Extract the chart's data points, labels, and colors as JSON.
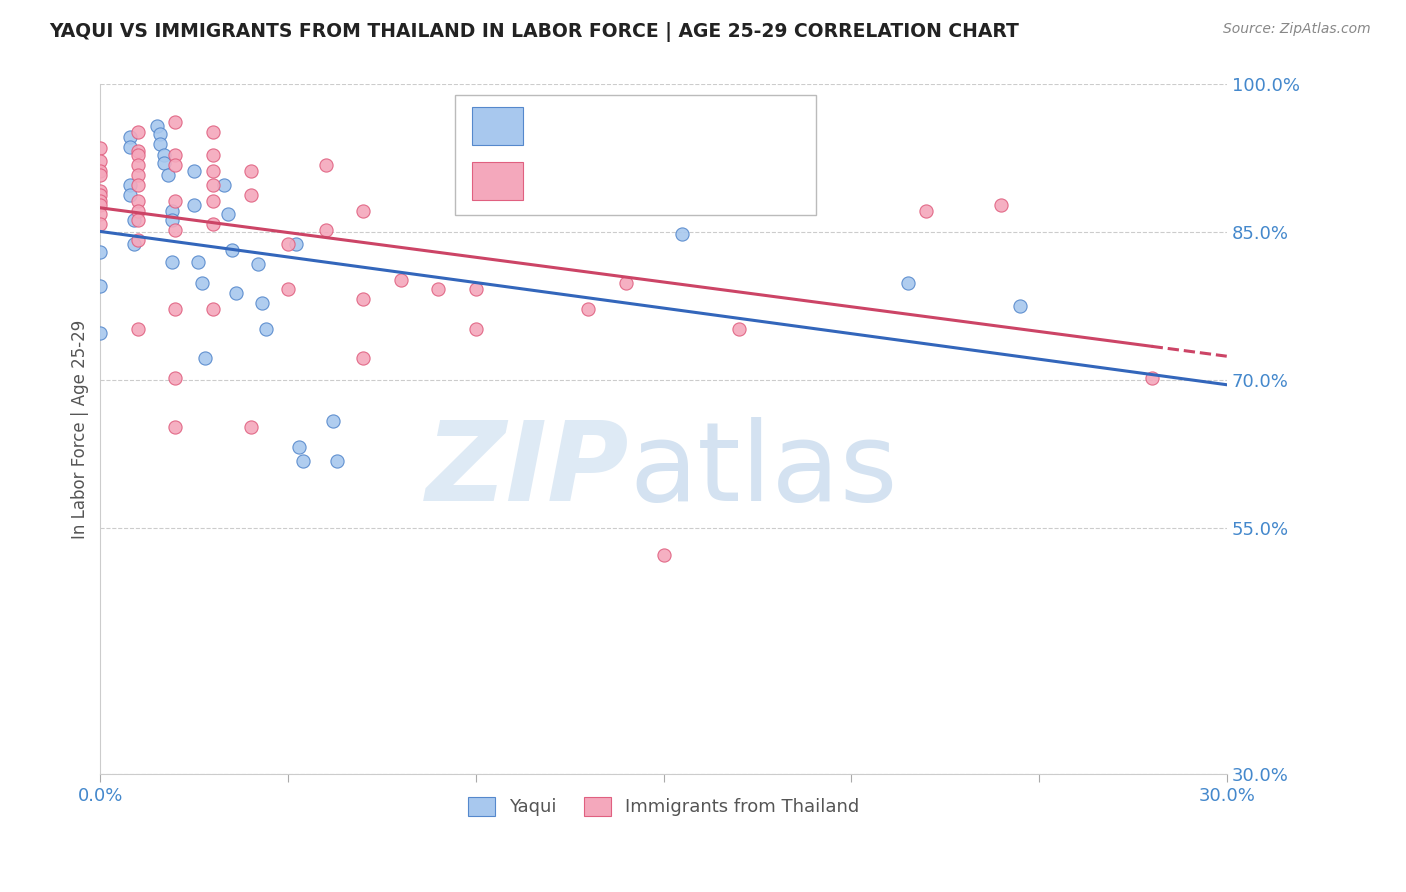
{
  "title": "YAQUI VS IMMIGRANTS FROM THAILAND IN LABOR FORCE | AGE 25-29 CORRELATION CHART",
  "source": "Source: ZipAtlas.com",
  "ylabel": "In Labor Force | Age 25-29",
  "xmin": 0.0,
  "xmax": 0.3,
  "ymin": 0.3,
  "ymax": 1.0,
  "yticks": [
    0.3,
    0.55,
    0.7,
    0.85,
    1.0
  ],
  "ytick_labels": [
    "30.0%",
    "55.0%",
    "70.0%",
    "85.0%",
    "100.0%"
  ],
  "xticks": [
    0.0,
    0.05,
    0.1,
    0.15,
    0.2,
    0.25,
    0.3
  ],
  "xtick_labels": [
    "0.0%",
    "",
    "",
    "",
    "",
    "",
    "30.0%"
  ],
  "legend_label_blue": "Yaqui",
  "legend_label_pink": "Immigrants from Thailand",
  "blue_fill_color": "#A8C8EE",
  "pink_fill_color": "#F4A8BC",
  "blue_edge_color": "#5588CC",
  "pink_edge_color": "#E06080",
  "blue_line_color": "#3366BB",
  "pink_line_color": "#CC4466",
  "axis_color": "#4488CC",
  "grid_color": "#CCCCCC",
  "title_color": "#222222",
  "source_color": "#888888",
  "background_color": "#FFFFFF",
  "yaqui_x": [
    0.0,
    0.0,
    0.0,
    0.008,
    0.008,
    0.008,
    0.008,
    0.009,
    0.009,
    0.015,
    0.016,
    0.016,
    0.017,
    0.017,
    0.018,
    0.019,
    0.019,
    0.019,
    0.025,
    0.025,
    0.026,
    0.027,
    0.028,
    0.033,
    0.034,
    0.035,
    0.036,
    0.042,
    0.043,
    0.044,
    0.052,
    0.053,
    0.054,
    0.062,
    0.063,
    0.155,
    0.215,
    0.245
  ],
  "yaqui_y": [
    0.83,
    0.795,
    0.748,
    0.947,
    0.937,
    0.898,
    0.888,
    0.862,
    0.838,
    0.958,
    0.95,
    0.94,
    0.928,
    0.92,
    0.908,
    0.872,
    0.862,
    0.82,
    0.912,
    0.878,
    0.82,
    0.798,
    0.722,
    0.898,
    0.868,
    0.832,
    0.788,
    0.818,
    0.778,
    0.752,
    0.838,
    0.632,
    0.618,
    0.658,
    0.618,
    0.848,
    0.798,
    0.775
  ],
  "thai_x": [
    0.0,
    0.0,
    0.0,
    0.0,
    0.0,
    0.0,
    0.0,
    0.0,
    0.0,
    0.0,
    0.01,
    0.01,
    0.01,
    0.01,
    0.01,
    0.01,
    0.01,
    0.01,
    0.01,
    0.01,
    0.01,
    0.02,
    0.02,
    0.02,
    0.02,
    0.02,
    0.02,
    0.02,
    0.02,
    0.03,
    0.03,
    0.03,
    0.03,
    0.03,
    0.03,
    0.03,
    0.04,
    0.04,
    0.04,
    0.05,
    0.05,
    0.06,
    0.06,
    0.07,
    0.07,
    0.07,
    0.08,
    0.09,
    0.1,
    0.1,
    0.11,
    0.12,
    0.13,
    0.14,
    0.15,
    0.17,
    0.17,
    0.22,
    0.24,
    0.28
  ],
  "thai_y": [
    0.935,
    0.922,
    0.912,
    0.908,
    0.892,
    0.888,
    0.882,
    0.878,
    0.868,
    0.858,
    0.952,
    0.932,
    0.928,
    0.918,
    0.908,
    0.898,
    0.882,
    0.872,
    0.862,
    0.842,
    0.752,
    0.962,
    0.928,
    0.918,
    0.882,
    0.852,
    0.772,
    0.702,
    0.652,
    0.952,
    0.928,
    0.912,
    0.898,
    0.882,
    0.858,
    0.772,
    0.912,
    0.888,
    0.652,
    0.838,
    0.792,
    0.918,
    0.852,
    0.872,
    0.782,
    0.722,
    0.802,
    0.792,
    0.792,
    0.752,
    0.888,
    0.918,
    0.772,
    0.798,
    0.522,
    0.888,
    0.752,
    0.872,
    0.878,
    0.702
  ]
}
